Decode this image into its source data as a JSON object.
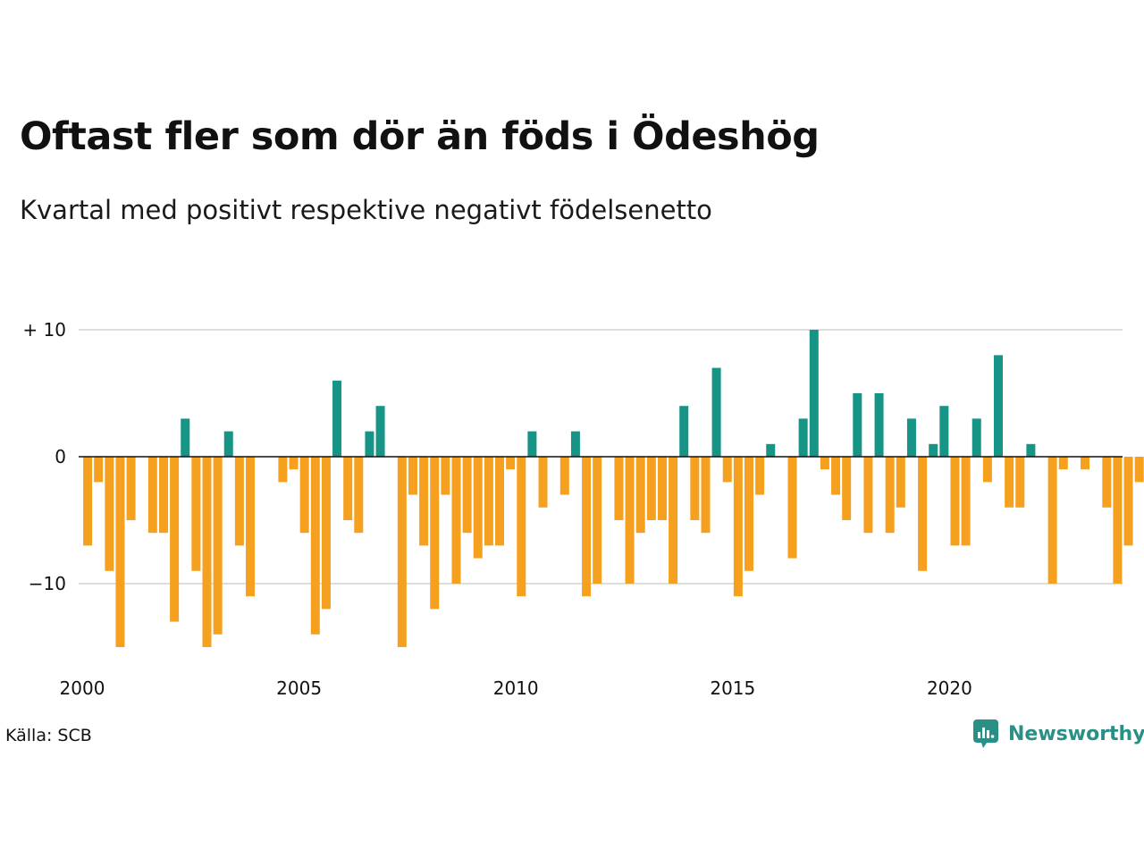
{
  "header": {
    "title": "Oftast fler som dör än föds i Ödeshög",
    "subtitle": "Kvartal med positivt respektive negativt födelsenetto"
  },
  "footer": {
    "source": "Källa: SCB",
    "brand": "Newsworthy",
    "brand_icon": "newsworthy-logo-icon"
  },
  "colors": {
    "positive": "#169486",
    "negative": "#f5a11f",
    "grid": "#dddddd",
    "zero_line": "#111111",
    "brand": "#2a8f85"
  },
  "chart_data": {
    "type": "bar",
    "title": "Oftast fler som dör än föds i Ödeshög",
    "subtitle": "Kvartal med positivt respektive negativt födelsenetto",
    "xlabel": "",
    "ylabel": "",
    "x_start": "2000 Q1",
    "x_ticks": [
      "2000",
      "2005",
      "2010",
      "2015",
      "2020"
    ],
    "y_ticks": [
      {
        "value": 10,
        "label": "+ 10"
      },
      {
        "value": 0,
        "label": "0"
      },
      {
        "value": -10,
        "label": "−10"
      }
    ],
    "ylim": [
      -15,
      10
    ],
    "grid": true,
    "values": [
      -7,
      -2,
      -9,
      -15,
      -5,
      0,
      -6,
      -6,
      -13,
      3,
      -9,
      -15,
      -14,
      2,
      -7,
      -11,
      0,
      0,
      -2,
      -1,
      -6,
      -14,
      -12,
      6,
      -5,
      -6,
      2,
      4,
      0,
      -15,
      -3,
      -7,
      -12,
      -3,
      -10,
      -6,
      -8,
      -7,
      -7,
      -1,
      -11,
      2,
      -4,
      0,
      -3,
      2,
      -11,
      -10,
      0,
      -5,
      -10,
      -6,
      -5,
      -5,
      -10,
      4,
      -5,
      -6,
      7,
      -2,
      -11,
      -9,
      -3,
      1,
      0,
      -8,
      3,
      10,
      -1,
      -3,
      -5,
      5,
      -6,
      5,
      -6,
      -4,
      3,
      -9,
      1,
      4,
      -7,
      -7,
      3,
      -2,
      8,
      -4,
      -4,
      1,
      0,
      -10,
      -1,
      0,
      -1,
      0,
      -4,
      -10,
      -7,
      -2
    ]
  }
}
